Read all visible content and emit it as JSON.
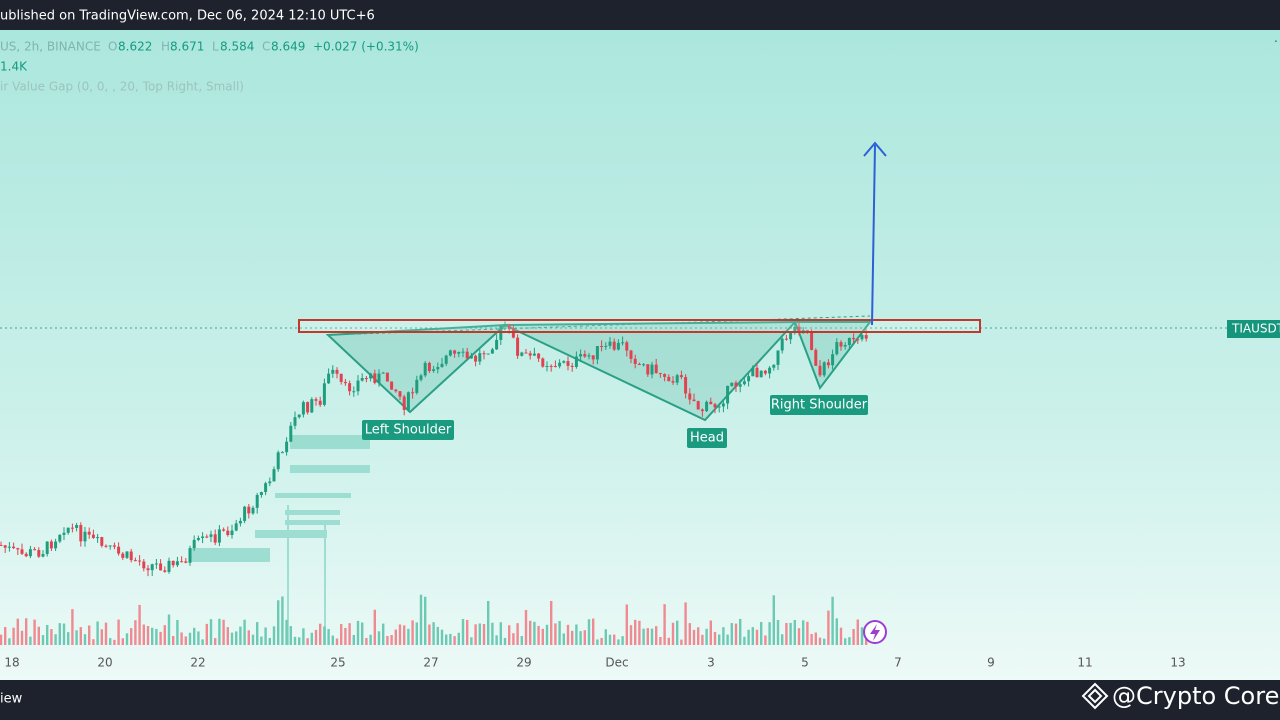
{
  "header": {
    "title": "ublished on TradingView.com, Dec 06, 2024 12:10 UTC+6"
  },
  "legend": {
    "symbol": "US, 2h, BINANCE",
    "open_label": "O",
    "open": "8.622",
    "high_label": "H",
    "high": "8.671",
    "low_label": "L",
    "low": "8.584",
    "close_label": "C",
    "close": "8.649",
    "change": "+0.027 (+0.31%)",
    "volume": "1.4K",
    "indicator": "ir Value Gap (0, 0, , 20, Top Right, Small)"
  },
  "annotations": {
    "left_shoulder": "Left Shoulder",
    "head": "Head",
    "right_shoulder": "Right Shoulder",
    "price_tag": "TIAUSDT"
  },
  "x_axis": {
    "labels": [
      "18",
      "20",
      "22",
      "25",
      "27",
      "29",
      "Dec",
      "3",
      "5",
      "7",
      "9",
      "11",
      "13"
    ]
  },
  "footer": {
    "left": "iew",
    "watermark": "@Crypto Core"
  }
}
